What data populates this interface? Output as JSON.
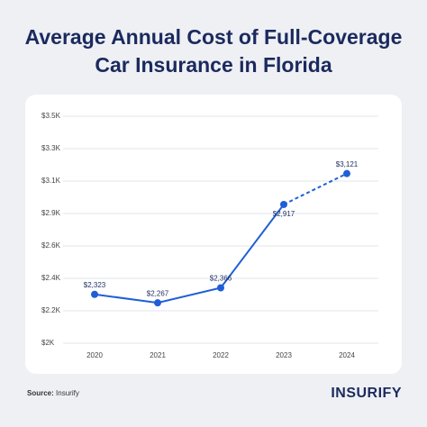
{
  "chart_data": {
    "type": "line",
    "title": "Average Annual Cost of Full-Coverage Car Insurance in Florida",
    "categories": [
      "2020",
      "2021",
      "2022",
      "2023",
      "2024"
    ],
    "series": [
      {
        "color": "#1f5fd6",
        "values": [
          2323,
          2267,
          2366,
          2917,
          3121
        ],
        "value_labels": [
          "$2,323",
          "$2,267",
          "$2,366",
          "$2,917",
          "$3,121"
        ]
      }
    ],
    "ylim": [
      2000,
      3500
    ],
    "yticks": [
      {
        "value": 2000,
        "label": "$2K"
      },
      {
        "value": 2214.29,
        "label": "$2.2K"
      },
      {
        "value": 2428.57,
        "label": "$2.4K"
      },
      {
        "value": 2642.86,
        "label": "$2.6K"
      },
      {
        "value": 2857.14,
        "label": "$2.9K"
      },
      {
        "value": 3071.43,
        "label": "$3.1K"
      },
      {
        "value": 3285.71,
        "label": "$3.3K"
      },
      {
        "value": 3500,
        "label": "$3.5K"
      }
    ],
    "grid": true,
    "source_label": "Source:",
    "source": "Insurify",
    "brand": "INSURIFY"
  }
}
